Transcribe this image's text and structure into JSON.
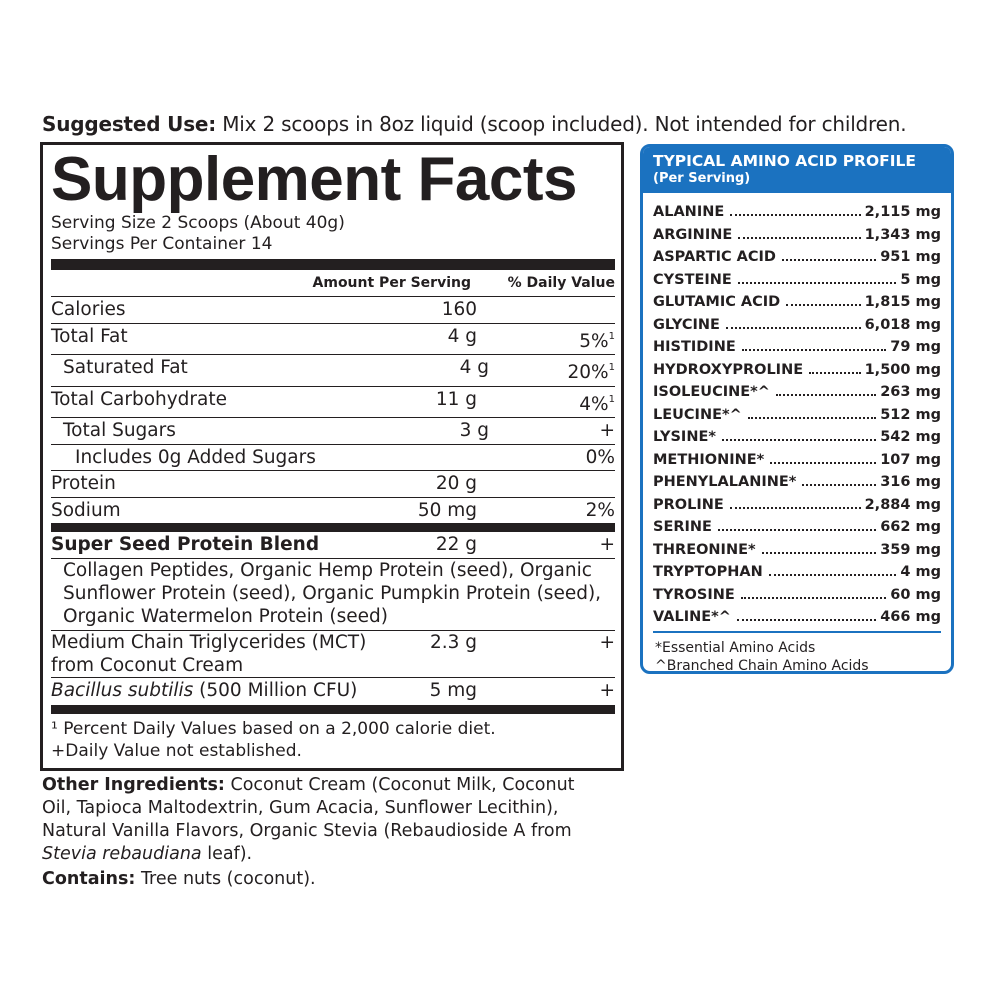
{
  "suggested_use": {
    "label": "Suggested Use:",
    "text": "Mix 2 scoops in 8oz liquid (scoop included). Not intended for children."
  },
  "facts": {
    "title": "Supplement Facts",
    "serving_size": "Serving Size 2 Scoops (About 40g)",
    "servings_per_container": "Servings Per Container 14",
    "header": [
      "Amount Per Serving",
      "% Daily Value"
    ],
    "rows": [
      {
        "name": "Calories",
        "amount": "160"
      },
      {
        "name": "Total Fat",
        "amount": "4 g",
        "dv": "5%",
        "note": "1"
      },
      {
        "name": "Saturated Fat",
        "amount": "4 g",
        "dv": "20%",
        "note": "1"
      },
      {
        "name": "Total Carbohydrate",
        "amount": "11 g",
        "dv": "4%",
        "note": "1"
      },
      {
        "name": "Total Sugars",
        "amount": "3 g",
        "dv": "+"
      },
      {
        "name": "Includes 0g Added Sugars",
        "dv": "0%"
      },
      {
        "name": "Protein",
        "amount": "20 g"
      },
      {
        "name": "Sodium",
        "amount": "50 mg",
        "dv": "2%"
      }
    ],
    "blend": {
      "name": "Super Seed Protein Blend",
      "amount": "22 g",
      "dv": "+",
      "ingredients": "Collagen Peptides, Organic Hemp Protein (seed), Organic Sunflower Protein (seed), Organic Pumpkin Protein (seed), Organic Watermelon Protein (seed)"
    },
    "mct": {
      "name": "Medium Chain Triglycerides (MCT) from Coconut Cream",
      "amount": "2.3 g",
      "dv": "+"
    },
    "bacillus": {
      "name_italic": "Bacillus subtilis",
      "name": " (500 Million CFU)",
      "amount": "5 mg",
      "dv": "+"
    },
    "footnotes": [
      "¹ Percent Daily Values based on a 2,000 calorie diet.",
      "+Daily Value not established."
    ]
  },
  "other_ingredients": {
    "label": "Other Ingredients:",
    "text": " Coconut Cream (Coconut Milk, Coconut Oil, Tapioca Maltodextrin, Gum Acacia, Sunflower Lecithin), Natural Vanilla Flavors, Organic Stevia (Rebaudioside A from ",
    "italic": "Stevia rebaudiana",
    "end": " leaf)."
  },
  "contains": {
    "label": "Contains:",
    "text": " Tree nuts (coconut)."
  },
  "amino": {
    "title": "TYPICAL AMINO ACID PROFILE",
    "subtitle": "(Per Serving)",
    "items": [
      {
        "name": "ALANINE",
        "value": "2,115 mg"
      },
      {
        "name": "ARGININE",
        "value": "1,343 mg"
      },
      {
        "name": "ASPARTIC ACID",
        "value": "951 mg"
      },
      {
        "name": "CYSTEINE",
        "value": "5 mg"
      },
      {
        "name": "GLUTAMIC ACID",
        "value": "1,815 mg"
      },
      {
        "name": "GLYCINE",
        "value": "6,018 mg"
      },
      {
        "name": "HISTIDINE",
        "value": "79 mg"
      },
      {
        "name": "HYDROXYPROLINE",
        "value": "1,500 mg"
      },
      {
        "name": "ISOLEUCINE*^",
        "value": "263 mg"
      },
      {
        "name": "LEUCINE*^",
        "value": "512 mg"
      },
      {
        "name": "LYSINE*",
        "value": "542 mg"
      },
      {
        "name": "METHIONINE*",
        "value": "107 mg"
      },
      {
        "name": "PHENYLALANINE*",
        "value": "316 mg"
      },
      {
        "name": "PROLINE",
        "value": "2,884 mg"
      },
      {
        "name": "SERINE",
        "value": "662 mg"
      },
      {
        "name": "THREONINE*",
        "value": "359 mg"
      },
      {
        "name": "TRYPTOPHAN",
        "value": "4 mg"
      },
      {
        "name": "TYROSINE",
        "value": "60 mg"
      },
      {
        "name": "VALINE*^",
        "value": "466 mg"
      }
    ],
    "notes": [
      "*Essential Amino Acids",
      "^Branched Chain Amino Acids"
    ]
  }
}
